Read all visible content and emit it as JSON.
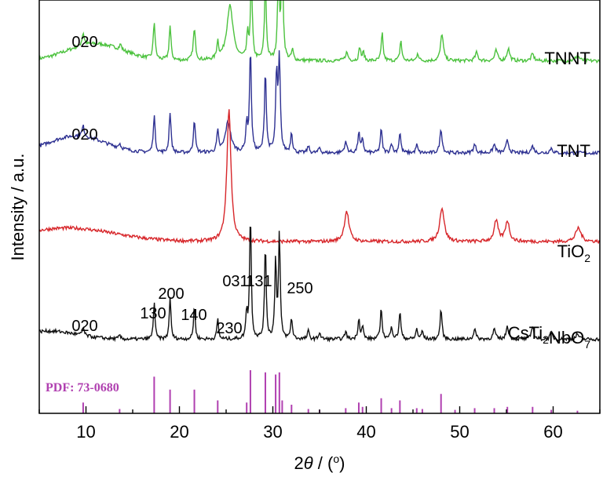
{
  "chart_data": {
    "type": "line",
    "title": "",
    "xlabel": "2θ / (°)",
    "xlabel_parts": {
      "two": "2",
      "theta": "θ",
      "rest": " / (",
      "deg": "o",
      "close": ")"
    },
    "ylabel": "Intensity / a.u.",
    "xlim": [
      5,
      65
    ],
    "xticks": [
      10,
      20,
      30,
      40,
      50,
      60
    ],
    "xtick_labels": [
      "10",
      "20",
      "30",
      "40",
      "50",
      "60"
    ],
    "y_ticks_shown": false,
    "series": [
      {
        "name": "TNNT",
        "label_parts": {
          "main": "TNNT"
        },
        "color": "#4cc23e",
        "baseline": 4.2,
        "hump_center": 11,
        "hump_width": 3,
        "hump_height": 0.25,
        "peaks": [
          [
            9.7,
            0.18,
            0.25
          ],
          [
            13.7,
            0.08,
            0.2
          ],
          [
            17.3,
            0.55,
            0.2
          ],
          [
            19.0,
            0.5,
            0.2
          ],
          [
            21.6,
            0.45,
            0.25
          ],
          [
            24.1,
            0.25,
            0.2
          ],
          [
            25.4,
            0.8,
            0.7
          ],
          [
            27.3,
            0.35,
            0.2
          ],
          [
            27.7,
            1.2,
            0.2
          ],
          [
            29.2,
            1.15,
            0.2
          ],
          [
            30.6,
            1.25,
            0.2
          ],
          [
            31.0,
            1.55,
            0.2
          ],
          [
            32.1,
            0.15,
            0.2
          ],
          [
            37.9,
            0.12,
            0.3
          ],
          [
            39.3,
            0.2,
            0.2
          ],
          [
            39.7,
            0.12,
            0.2
          ],
          [
            41.7,
            0.4,
            0.2
          ],
          [
            43.7,
            0.3,
            0.2
          ],
          [
            45.5,
            0.12,
            0.2
          ],
          [
            48.1,
            0.4,
            0.3
          ],
          [
            51.8,
            0.12,
            0.3
          ],
          [
            53.9,
            0.15,
            0.3
          ],
          [
            55.2,
            0.18,
            0.3
          ],
          [
            57.8,
            0.1,
            0.3
          ],
          [
            62.6,
            0.08,
            0.4
          ]
        ],
        "peak_labels": [
          {
            "x": 9.7,
            "text": "020"
          }
        ]
      },
      {
        "name": "TNT",
        "label_parts": {
          "main": "TNT"
        },
        "color": "#2e3192",
        "baseline": 2.85,
        "hump_center": 9,
        "hump_width": 3,
        "hump_height": 0.25,
        "peaks": [
          [
            9.7,
            0.15,
            0.25
          ],
          [
            13.6,
            0.07,
            0.2
          ],
          [
            17.3,
            0.55,
            0.2
          ],
          [
            19.0,
            0.6,
            0.2
          ],
          [
            21.6,
            0.5,
            0.2
          ],
          [
            24.1,
            0.3,
            0.2
          ],
          [
            25.2,
            0.45,
            0.6
          ],
          [
            27.2,
            0.4,
            0.2
          ],
          [
            27.6,
            1.5,
            0.2
          ],
          [
            29.2,
            1.2,
            0.2
          ],
          [
            30.4,
            1.15,
            0.2
          ],
          [
            30.7,
            1.35,
            0.2
          ],
          [
            32.0,
            0.3,
            0.2
          ],
          [
            33.8,
            0.1,
            0.2
          ],
          [
            35.0,
            0.08,
            0.2
          ],
          [
            37.8,
            0.15,
            0.3
          ],
          [
            39.2,
            0.3,
            0.2
          ],
          [
            39.6,
            0.2,
            0.2
          ],
          [
            41.6,
            0.35,
            0.2
          ],
          [
            42.7,
            0.15,
            0.2
          ],
          [
            43.6,
            0.3,
            0.2
          ],
          [
            45.4,
            0.12,
            0.2
          ],
          [
            48.0,
            0.35,
            0.25
          ],
          [
            51.6,
            0.12,
            0.3
          ],
          [
            53.7,
            0.12,
            0.3
          ],
          [
            55.1,
            0.18,
            0.3
          ],
          [
            57.8,
            0.1,
            0.3
          ],
          [
            59.8,
            0.07,
            0.3
          ]
        ],
        "peak_labels": [
          {
            "x": 9.7,
            "text": "020"
          }
        ]
      },
      {
        "name": "TiO2",
        "label_parts": {
          "main": "TiO",
          "sub": "2"
        },
        "color": "#d7262a",
        "baseline": 1.55,
        "hump_center": 8,
        "hump_width": 5,
        "hump_height": 0.2,
        "peaks": [
          [
            25.3,
            1.95,
            0.45
          ],
          [
            37.9,
            0.45,
            0.5
          ],
          [
            48.1,
            0.5,
            0.5
          ],
          [
            53.9,
            0.3,
            0.45
          ],
          [
            55.1,
            0.3,
            0.45
          ],
          [
            62.7,
            0.2,
            0.6
          ]
        ],
        "peak_labels": []
      },
      {
        "name": "CsTi2NbO7",
        "label_parts": {
          "main": "CsTi",
          "sub1": "2",
          "mid": "NbO",
          "sub2": "7"
        },
        "color": "#111111",
        "baseline": 0.12,
        "hump_center": 6,
        "hump_width": 3,
        "hump_height": 0.12,
        "peaks": [
          [
            9.7,
            0.12,
            0.2
          ],
          [
            13.6,
            0.05,
            0.2
          ],
          [
            17.3,
            0.55,
            0.18
          ],
          [
            19.0,
            0.62,
            0.18
          ],
          [
            21.6,
            0.5,
            0.18
          ],
          [
            24.1,
            0.3,
            0.18
          ],
          [
            27.2,
            0.4,
            0.18
          ],
          [
            27.6,
            1.85,
            0.18
          ],
          [
            29.2,
            1.4,
            0.18
          ],
          [
            30.3,
            1.15,
            0.18
          ],
          [
            30.7,
            1.55,
            0.18
          ],
          [
            32.0,
            0.3,
            0.2
          ],
          [
            33.8,
            0.12,
            0.2
          ],
          [
            35.0,
            0.1,
            0.2
          ],
          [
            37.8,
            0.12,
            0.2
          ],
          [
            39.2,
            0.3,
            0.2
          ],
          [
            39.6,
            0.18,
            0.2
          ],
          [
            41.6,
            0.45,
            0.2
          ],
          [
            42.7,
            0.2,
            0.2
          ],
          [
            43.6,
            0.4,
            0.2
          ],
          [
            45.4,
            0.15,
            0.2
          ],
          [
            46.0,
            0.12,
            0.2
          ],
          [
            48.0,
            0.45,
            0.2
          ],
          [
            51.6,
            0.15,
            0.25
          ],
          [
            53.7,
            0.15,
            0.25
          ],
          [
            55.1,
            0.2,
            0.25
          ],
          [
            57.8,
            0.2,
            0.25
          ],
          [
            59.8,
            0.1,
            0.25
          ],
          [
            62.6,
            0.08,
            0.3
          ]
        ],
        "peak_labels": [
          {
            "x": 9.7,
            "text": "020"
          },
          {
            "x": 17.3,
            "text": "130"
          },
          {
            "x": 19.0,
            "text": "200"
          },
          {
            "x": 21.6,
            "text": "140"
          },
          {
            "x": 24.1,
            "text": "230"
          },
          {
            "x": 27.6,
            "text": "031"
          },
          {
            "x": 29.2,
            "text": "131"
          },
          {
            "x": 30.7,
            "text": "250"
          }
        ]
      }
    ],
    "reference": {
      "name": "PDF: 73-0680",
      "color": "#b040b0",
      "sticks": [
        [
          9.7,
          0.25
        ],
        [
          13.6,
          0.1
        ],
        [
          17.3,
          0.85
        ],
        [
          19.0,
          0.55
        ],
        [
          21.6,
          0.55
        ],
        [
          24.1,
          0.3
        ],
        [
          27.2,
          0.25
        ],
        [
          27.6,
          1.0
        ],
        [
          29.2,
          0.95
        ],
        [
          30.3,
          0.9
        ],
        [
          30.7,
          0.95
        ],
        [
          31.0,
          0.3
        ],
        [
          32.0,
          0.2
        ],
        [
          33.8,
          0.1
        ],
        [
          35.0,
          0.08
        ],
        [
          37.8,
          0.12
        ],
        [
          39.2,
          0.25
        ],
        [
          39.6,
          0.15
        ],
        [
          41.6,
          0.35
        ],
        [
          42.7,
          0.12
        ],
        [
          43.6,
          0.3
        ],
        [
          45.4,
          0.12
        ],
        [
          46.0,
          0.1
        ],
        [
          48.0,
          0.45
        ],
        [
          49.5,
          0.08
        ],
        [
          51.6,
          0.12
        ],
        [
          53.7,
          0.12
        ],
        [
          55.1,
          0.15
        ],
        [
          57.8,
          0.15
        ],
        [
          59.8,
          0.08
        ],
        [
          62.6,
          0.06
        ]
      ]
    }
  }
}
